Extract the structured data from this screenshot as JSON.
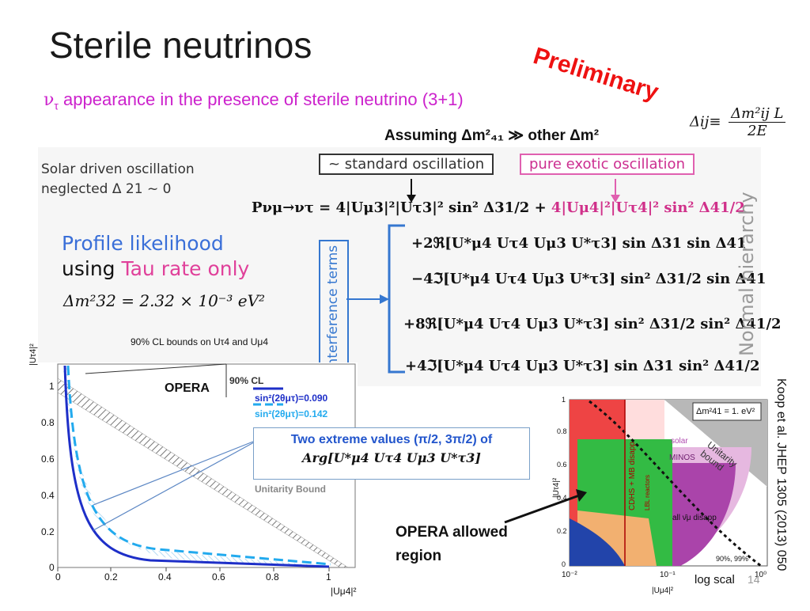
{
  "slide": {
    "title": "Sterile neutrinos",
    "stamp": "Preliminary",
    "subtitle_symbol": "ν",
    "subtitle_sub": "τ",
    "subtitle_text": " appearance in the presence of sterile neutrino (3+1)",
    "assumption": "Assuming Δm²₄₁ ≫ other Δm²",
    "delta_definition": {
      "lhs": "Δij≡",
      "numerator": "Δm²ij L",
      "denominator": "2E"
    },
    "page_number": "14"
  },
  "panel": {
    "solar_line1": "Solar driven oscillation",
    "solar_line2": "neglected Δ 21 ~ 0",
    "box_standard": "~ standard oscillation",
    "box_exotic": "pure exotic oscillation",
    "profile_line1": "Profile likelihood",
    "profile_using": "using ",
    "profile_tau": "Tau rate only",
    "dm32": "Δm²32 = 2.32 × 10⁻³ eV²",
    "cl_bounds": "90% CL bounds on Uτ4 and Uμ4",
    "interference": "interference terms",
    "hierarchy": "Normal hierarchy",
    "equation": {
      "line1_black": "Pνμ→ντ = 4|Uμ3|²|Uτ3|² sin² Δ31/2 + ",
      "line1_pink": "4|Uμ4|²|Uτ4|² sin² Δ41/2",
      "line2": "+2ℜ[U*μ4 Uτ4 Uμ3 U*τ3] sin Δ31 sin Δ41",
      "line3": "−4ℑ[U*μ4 Uτ4 Uμ3 U*τ3] sin² Δ31/2 sin Δ41",
      "line4": "+8ℜ[U*μ4 Uτ4 Uμ3 U*τ3] sin² Δ31/2 sin² Δ41/2",
      "line5": "+4ℑ[U*μ4 Uτ4 Uμ3 U*τ3] sin Δ31 sin² Δ41/2"
    }
  },
  "opera_plot": {
    "experiment": "OPERA",
    "cl": "90% CL",
    "legend_1": "sin²(2θμτ)=0.090",
    "legend_2": "sin²(2θμτ)=0.142",
    "unitarity": "Unitarity Bound",
    "ylabel": "|Uτ4|²",
    "xlabel": "|Uμ4|²",
    "xticks": [
      "0",
      "0.2",
      "0.4",
      "0.6",
      "0.8",
      "1"
    ],
    "yticks": [
      "0",
      "0.2",
      "0.4",
      "0.6",
      "0.8",
      "1"
    ],
    "callout_line1": "Two extreme values (π/2, 3π/2) of",
    "callout_line2": "Arg[U*μ4 Uτ4 Uμ3 U*τ3]"
  },
  "ref_plot": {
    "dm_label": "Δm²41 = 1. eV²",
    "unitarity": "Unitarity bound",
    "solar": "solar",
    "minos": "MINOS",
    "cdhs": "CDHS + MB disapp",
    "lbl": "LBL reactors",
    "all_disapp": "all ν̄μ disapp",
    "ninety": "90%, 99%",
    "ylabel": "|Uτ4|²",
    "xlabel": "|Uμ4|²",
    "xticks": [
      "10⁻²",
      "10⁻¹",
      "10⁰"
    ],
    "yticks": [
      "0",
      "0.2",
      "0.4",
      "0.6",
      "0.8",
      "1"
    ],
    "reference": "Koop et al. JHEP 1305 (2013) 050",
    "log_note": "log scal",
    "opera_allowed_1": "OPERA allowed",
    "opera_allowed_2": "region"
  }
}
